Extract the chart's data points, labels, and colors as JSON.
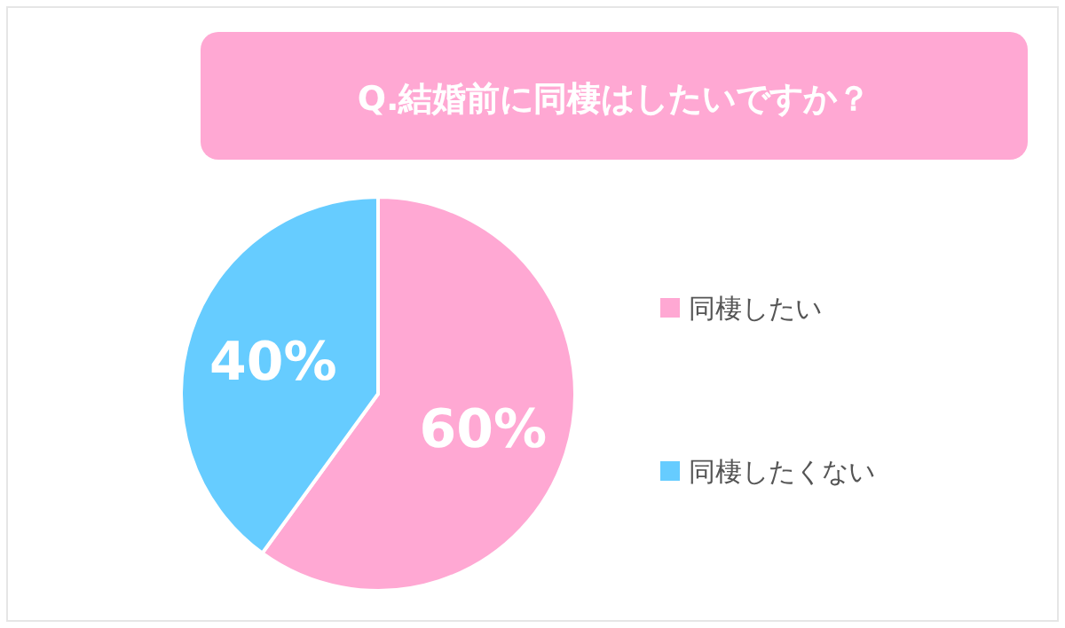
{
  "chart_data": {
    "type": "pie",
    "title": "Q.結婚前に同棲はしたいですか？",
    "categories": [
      "同棲したい",
      "同棲したくない"
    ],
    "values": [
      60,
      40
    ],
    "value_labels": [
      "60%",
      "40%"
    ],
    "colors": [
      "#ffa8d3",
      "#66ccff"
    ],
    "legend": "right"
  }
}
